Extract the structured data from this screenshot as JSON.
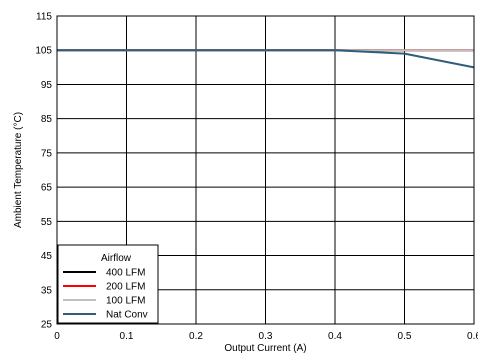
{
  "chart_data": {
    "type": "line",
    "xlabel": "Output Current (A)",
    "ylabel": "Ambient Temperature (°C)",
    "xlim": [
      0,
      0.6
    ],
    "ylim": [
      25,
      115
    ],
    "xticks": [
      0,
      0.1,
      0.2,
      0.3,
      0.4,
      0.5,
      0.6
    ],
    "xtick_labels": [
      "0",
      "0.1",
      "0.2",
      "0.3",
      "0.4",
      "0.5",
      "0.6"
    ],
    "yticks": [
      25,
      35,
      45,
      55,
      65,
      75,
      85,
      95,
      105,
      115
    ],
    "ytick_labels": [
      "25",
      "35",
      "45",
      "55",
      "65",
      "75",
      "85",
      "95",
      "105",
      "115"
    ],
    "grid": true,
    "legend": {
      "title": "Airflow",
      "placement": "bottom-left"
    },
    "series": [
      {
        "name": "400 LFM",
        "color": "#000000",
        "x": [
          0,
          0.4,
          0.6
        ],
        "y": [
          105,
          105,
          105
        ]
      },
      {
        "name": "200 LFM",
        "color": "#ff0000",
        "x": [
          0,
          0.4,
          0.6
        ],
        "y": [
          105,
          105,
          105
        ]
      },
      {
        "name": "100 LFM",
        "color": "#c0c0c0",
        "x": [
          0,
          0.4,
          0.5,
          0.6
        ],
        "y": [
          105,
          105,
          105,
          105
        ]
      },
      {
        "name": "Nat Conv",
        "color": "#2e5f7a",
        "x": [
          0,
          0.4,
          0.5,
          0.6
        ],
        "y": [
          105,
          105,
          104,
          100
        ]
      }
    ]
  }
}
